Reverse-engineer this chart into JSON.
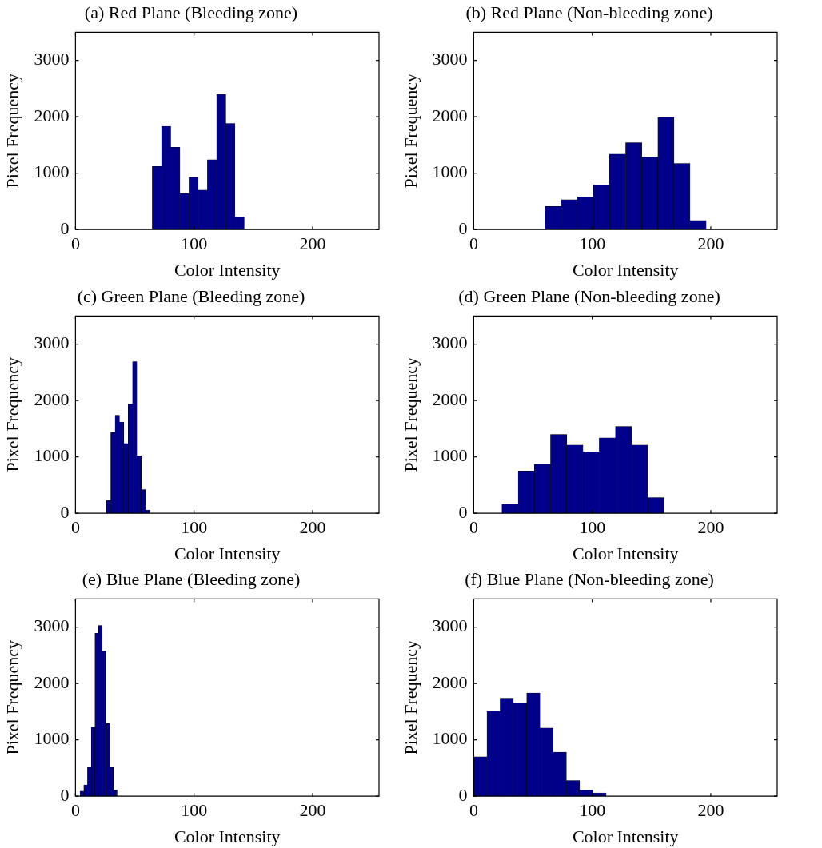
{
  "chart_data": [
    {
      "type": "histogram",
      "title": "(a) Red Plane (Bleeding zone)",
      "xlabel": "Color Intensity",
      "ylabel": "Pixel Frequency",
      "color": "#00008b",
      "bins": [
        64.8,
        72.55,
        80.3,
        88.05,
        95.8,
        103.55,
        111.3,
        119.05,
        126.8,
        134.55,
        142.3
      ],
      "values": [
        1120,
        1830,
        1460,
        640,
        930,
        700,
        1240,
        2400,
        1880,
        220
      ],
      "xlim": [
        0,
        256
      ],
      "ylim": [
        0,
        3500
      ],
      "xticks": [
        0,
        100,
        200
      ],
      "yticks": [
        0,
        1000,
        2000,
        3000
      ]
    },
    {
      "type": "histogram",
      "title": "(b) Red Plane (Non-bleeding zone)",
      "xlabel": "Color Intensity",
      "ylabel": "Pixel Frequency",
      "color": "#00008b",
      "bins": [
        60.3,
        73.9,
        87.5,
        101.0,
        114.6,
        128.2,
        141.8,
        155.4,
        168.9,
        182.5,
        196.1
      ],
      "values": [
        410,
        530,
        580,
        790,
        1340,
        1540,
        1290,
        1990,
        1170,
        160
      ],
      "xlim": [
        0,
        256
      ],
      "ylim": [
        0,
        3500
      ],
      "xticks": [
        0,
        100,
        200
      ],
      "yticks": [
        0,
        1000,
        2000,
        3000
      ]
    },
    {
      "type": "histogram",
      "title": "(c) Green Plane (Bleeding zone)",
      "xlabel": "Color Intensity",
      "ylabel": "Pixel Frequency",
      "color": "#00008b",
      "bins": [
        26.1,
        29.8,
        33.4,
        37.1,
        40.8,
        44.5,
        48.1,
        51.8,
        55.5,
        59.1,
        62.8
      ],
      "values": [
        230,
        1430,
        1740,
        1620,
        1240,
        1940,
        2690,
        1020,
        420,
        60
      ],
      "xlim": [
        0,
        256
      ],
      "ylim": [
        0,
        3500
      ],
      "xticks": [
        0,
        100,
        200
      ],
      "yticks": [
        0,
        1000,
        2000,
        3000
      ]
    },
    {
      "type": "histogram",
      "title": "(d) Green Plane (Non-bleeding zone)",
      "xlabel": "Color Intensity",
      "ylabel": "Pixel Frequency",
      "color": "#00008b",
      "bins": [
        23.8,
        37.5,
        51.2,
        64.8,
        78.5,
        92.2,
        105.9,
        119.6,
        133.2,
        146.9,
        160.6
      ],
      "values": [
        160,
        750,
        870,
        1400,
        1210,
        1090,
        1340,
        1540,
        1210,
        280
      ],
      "xlim": [
        0,
        256
      ],
      "ylim": [
        0,
        3500
      ],
      "xticks": [
        0,
        100,
        200
      ],
      "yticks": [
        0,
        1000,
        2000,
        3000
      ]
    },
    {
      "type": "histogram",
      "title": "(e) Blue Plane (Bleeding zone)",
      "xlabel": "Color Intensity",
      "ylabel": "Pixel Frequency",
      "color": "#00008b",
      "bins": [
        3.9,
        7.0,
        10.1,
        13.3,
        16.4,
        19.5,
        22.6,
        25.7,
        28.9,
        32.0,
        35.1
      ],
      "values": [
        90,
        200,
        510,
        1230,
        2890,
        3030,
        2580,
        1290,
        510,
        110
      ],
      "xlim": [
        0,
        256
      ],
      "ylim": [
        0,
        3500
      ],
      "xticks": [
        0,
        100,
        200
      ],
      "yticks": [
        0,
        1000,
        2000,
        3000
      ]
    },
    {
      "type": "histogram",
      "title": "(f) Blue Plane (Non-bleeding zone)",
      "xlabel": "Color Intensity",
      "ylabel": "Pixel Frequency",
      "color": "#00008b",
      "bins": [
        0,
        11.2,
        22.3,
        33.5,
        44.7,
        55.9,
        67.0,
        78.2,
        89.4,
        100.5,
        111.7
      ],
      "values": [
        700,
        1510,
        1740,
        1650,
        1830,
        1210,
        780,
        280,
        110,
        60
      ],
      "xlim": [
        0,
        256
      ],
      "ylim": [
        0,
        3500
      ],
      "xticks": [
        0,
        100,
        200
      ],
      "yticks": [
        0,
        1000,
        2000,
        3000
      ]
    }
  ]
}
